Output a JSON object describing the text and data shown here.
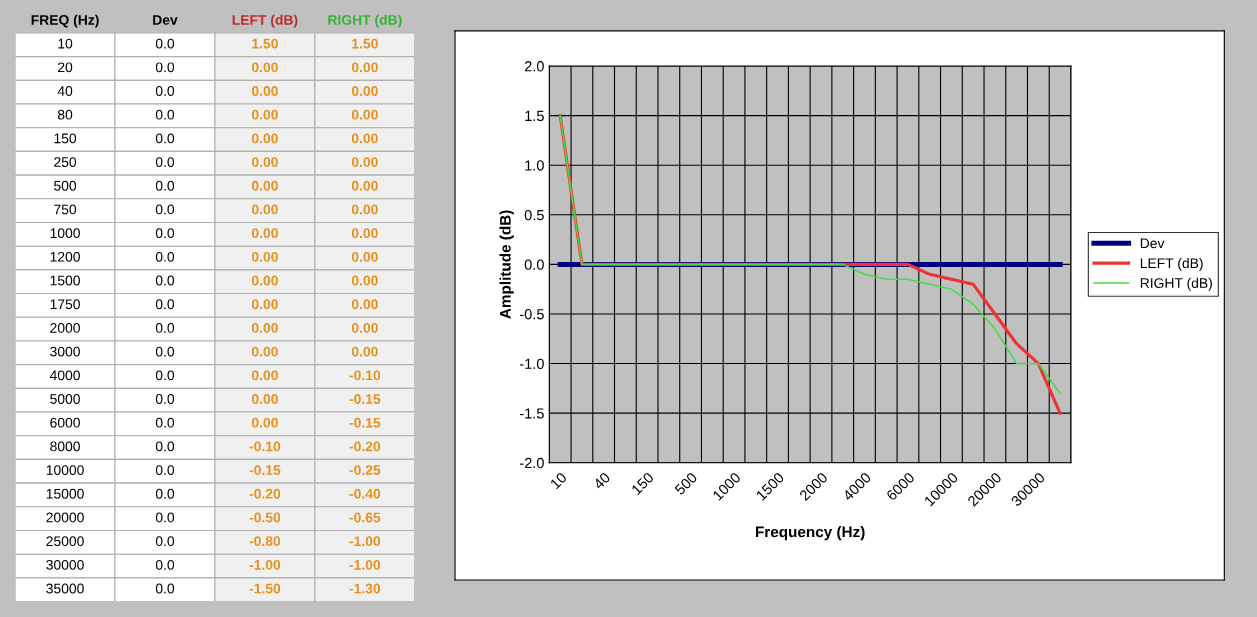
{
  "chart_data": {
    "type": "line",
    "xlabel": "Frequency (Hz)",
    "ylabel": "Amplitude (dB)",
    "annotations": [
      "FREQ (Hz)",
      "10",
      "0.0",
      "1.50",
      "1.50",
      "20",
      "0.0",
      "0.00",
      "0.00",
      "40",
      "0.0",
      "0.00",
      "0.00",
      "80",
      "0.0",
      "0.00",
      "0.00",
      "150",
      "0.0",
      "0.00",
      "0.00",
      "250",
      "0.0",
      "0.00",
      "0.00",
      "500",
      "0.0",
      "0.00",
      "0.00",
      "750",
      "0.0",
      "0.00",
      "0.00",
      "1000",
      "0.0",
      "0.00",
      "0.00",
      "1200",
      "0.0",
      "0.00",
      "0.00",
      "1500",
      "0.0",
      "0.00",
      "0.00",
      "1750",
      "0.0",
      "0.00",
      "0.00",
      "2000",
      "0.0",
      "0.00",
      "0.00",
      "3000",
      "0.0",
      "0.00",
      "0.00",
      "4000",
      "0.0",
      "0.00",
      "-0.10",
      "5000",
      "0.0",
      "0.00",
      "-0.15",
      "6000",
      "0.0",
      "0.00",
      "-0.15",
      "8000",
      "0.0",
      "-0.10",
      "-0.20",
      "10000",
      "0.0",
      "-0.15",
      "-0.25",
      "15000",
      "0.0",
      "-0.20",
      "-0.40",
      "20000",
      "0.0",
      "-0.50",
      "-0.65",
      "25000",
      "0.0",
      "-0.80",
      "-1.00",
      "30000",
      "0.0",
      "-1.00",
      "-1.00",
      "35000",
      "0.0",
      "-1.50",
      "-1.30"
    ],
    "categories": [
      "10",
      null,
      "40",
      null,
      "150",
      null,
      "500",
      null,
      "1000",
      null,
      "1500",
      null,
      "2000",
      null,
      "4000",
      null,
      "6000",
      null,
      "10000",
      null,
      "20000",
      null,
      "30000",
      null
    ],
    "series": [
      {
        "name": "Dev",
        "color": "#000080",
        "values": [
          0,
          0,
          0,
          0,
          0,
          0,
          0,
          0,
          0,
          0,
          0,
          0,
          0,
          0,
          0,
          0,
          0,
          0,
          0,
          0,
          0,
          0,
          0,
          0
        ]
      },
      {
        "name": "LEFT (dB)",
        "color": "#ee3333",
        "values": [
          1.5,
          0,
          0,
          0,
          0,
          0,
          0,
          0,
          0,
          0,
          0,
          0,
          0,
          0,
          0,
          0,
          0,
          -0.1,
          -0.15,
          -0.2,
          -0.5,
          -0.8,
          -1.0,
          -1.5
        ]
      },
      {
        "name": "RIGHT (dB)",
        "color": "#44dd44",
        "values": [
          1.5,
          0,
          0,
          0,
          0,
          0,
          0,
          0,
          0,
          0,
          0,
          0,
          0,
          0,
          -0.1,
          -0.15,
          -0.15,
          -0.2,
          -0.25,
          -0.4,
          -0.65,
          -1.0,
          -1.0,
          -1.3
        ]
      }
    ],
    "ylim": [
      -2.0,
      2.0
    ],
    "yticks": [
      {
        "value": -2.0,
        "label": "-2.0"
      },
      {
        "value": -1.5,
        "label": "-1.5"
      },
      {
        "value": -1.0,
        "label": "-1.0"
      },
      {
        "value": -0.5,
        "label": "-0.5"
      },
      {
        "value": 0.0,
        "label": "0.0"
      },
      {
        "value": 0.5,
        "label": "0.5"
      },
      {
        "value": 1.0,
        "label": "1.0"
      },
      {
        "value": 1.5,
        "label": "1.5"
      },
      {
        "value": 2.0,
        "label": "2.0"
      }
    ],
    "grid": true,
    "legend": "right",
    "marker": "none",
    "line_style": "solid"
  }
}
